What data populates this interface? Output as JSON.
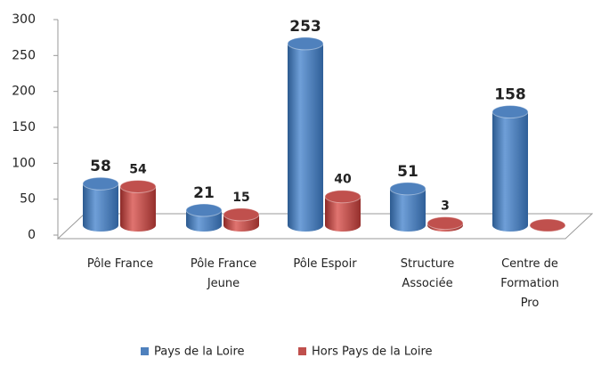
{
  "chart_data": {
    "type": "bar",
    "categories": [
      "Pôle France",
      "Pôle France Jeune",
      "Pôle Espoir",
      "Structure Associée",
      "Centre de Formation Pro"
    ],
    "series": [
      {
        "name": "Pays de la Loire",
        "color": "#4f81bd",
        "values": [
          58,
          21,
          253,
          51,
          158
        ]
      },
      {
        "name": "Hors Pays de la Loire",
        "color": "#c0504d",
        "values": [
          54,
          15,
          40,
          3,
          0
        ],
        "value_labels": [
          "54",
          "15",
          "40",
          "3",
          null
        ]
      }
    ],
    "ylim": [
      0,
      300
    ],
    "yticks": [
      0,
      50,
      100,
      150,
      200,
      250,
      300
    ],
    "grid": false,
    "legend": "bottom"
  }
}
